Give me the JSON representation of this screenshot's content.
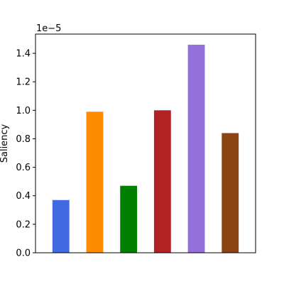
{
  "chart_data": {
    "type": "bar",
    "title": "",
    "xlabel": "",
    "ylabel": "Saliency",
    "y_offset_label": "1e−5",
    "categories": [
      "",
      "",
      "",
      "",
      "",
      ""
    ],
    "values": [
      0.37,
      0.99,
      0.47,
      1.0,
      1.46,
      0.84
    ],
    "value_scale": 1e-05,
    "colors": [
      "#4169e1",
      "#ff8c00",
      "#008000",
      "#b22222",
      "#9370db",
      "#8b4513"
    ],
    "ylim": [
      0,
      1.535
    ],
    "yticks": [
      0.0,
      0.2,
      0.4,
      0.6,
      0.8,
      1.0,
      1.2,
      1.4
    ],
    "ytick_labels": [
      "0.0",
      "0.2",
      "0.4",
      "0.6",
      "0.8",
      "1.0",
      "1.2",
      "1.4"
    ],
    "grid": false,
    "legend": "none"
  }
}
